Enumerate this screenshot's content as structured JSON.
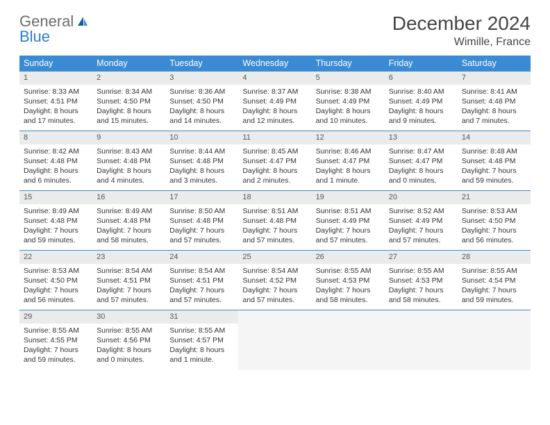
{
  "logo": {
    "general": "General",
    "blue": "Blue"
  },
  "title": "December 2024",
  "location": "Wimille, France",
  "colors": {
    "header_bg": "#3b8bd4",
    "header_text": "#ffffff",
    "daynum_bg": "#e9eceb",
    "border": "#3b8bd4",
    "text": "#333333",
    "logo_gray": "#6d6d6d",
    "logo_blue": "#2b7dcc",
    "empty_bg": "#f4f5f4"
  },
  "typography": {
    "title_fontsize": 28,
    "location_fontsize": 16,
    "dow_fontsize": 12.5,
    "cell_fontsize": 10.5
  },
  "days_of_week": [
    "Sunday",
    "Monday",
    "Tuesday",
    "Wednesday",
    "Thursday",
    "Friday",
    "Saturday"
  ],
  "weeks": [
    [
      {
        "n": "1",
        "sunrise": "Sunrise: 8:33 AM",
        "sunset": "Sunset: 4:51 PM",
        "daylight": "Daylight: 8 hours and 17 minutes."
      },
      {
        "n": "2",
        "sunrise": "Sunrise: 8:34 AM",
        "sunset": "Sunset: 4:50 PM",
        "daylight": "Daylight: 8 hours and 15 minutes."
      },
      {
        "n": "3",
        "sunrise": "Sunrise: 8:36 AM",
        "sunset": "Sunset: 4:50 PM",
        "daylight": "Daylight: 8 hours and 14 minutes."
      },
      {
        "n": "4",
        "sunrise": "Sunrise: 8:37 AM",
        "sunset": "Sunset: 4:49 PM",
        "daylight": "Daylight: 8 hours and 12 minutes."
      },
      {
        "n": "5",
        "sunrise": "Sunrise: 8:38 AM",
        "sunset": "Sunset: 4:49 PM",
        "daylight": "Daylight: 8 hours and 10 minutes."
      },
      {
        "n": "6",
        "sunrise": "Sunrise: 8:40 AM",
        "sunset": "Sunset: 4:49 PM",
        "daylight": "Daylight: 8 hours and 9 minutes."
      },
      {
        "n": "7",
        "sunrise": "Sunrise: 8:41 AM",
        "sunset": "Sunset: 4:48 PM",
        "daylight": "Daylight: 8 hours and 7 minutes."
      }
    ],
    [
      {
        "n": "8",
        "sunrise": "Sunrise: 8:42 AM",
        "sunset": "Sunset: 4:48 PM",
        "daylight": "Daylight: 8 hours and 6 minutes."
      },
      {
        "n": "9",
        "sunrise": "Sunrise: 8:43 AM",
        "sunset": "Sunset: 4:48 PM",
        "daylight": "Daylight: 8 hours and 4 minutes."
      },
      {
        "n": "10",
        "sunrise": "Sunrise: 8:44 AM",
        "sunset": "Sunset: 4:48 PM",
        "daylight": "Daylight: 8 hours and 3 minutes."
      },
      {
        "n": "11",
        "sunrise": "Sunrise: 8:45 AM",
        "sunset": "Sunset: 4:47 PM",
        "daylight": "Daylight: 8 hours and 2 minutes."
      },
      {
        "n": "12",
        "sunrise": "Sunrise: 8:46 AM",
        "sunset": "Sunset: 4:47 PM",
        "daylight": "Daylight: 8 hours and 1 minute."
      },
      {
        "n": "13",
        "sunrise": "Sunrise: 8:47 AM",
        "sunset": "Sunset: 4:47 PM",
        "daylight": "Daylight: 8 hours and 0 minutes."
      },
      {
        "n": "14",
        "sunrise": "Sunrise: 8:48 AM",
        "sunset": "Sunset: 4:48 PM",
        "daylight": "Daylight: 7 hours and 59 minutes."
      }
    ],
    [
      {
        "n": "15",
        "sunrise": "Sunrise: 8:49 AM",
        "sunset": "Sunset: 4:48 PM",
        "daylight": "Daylight: 7 hours and 59 minutes."
      },
      {
        "n": "16",
        "sunrise": "Sunrise: 8:49 AM",
        "sunset": "Sunset: 4:48 PM",
        "daylight": "Daylight: 7 hours and 58 minutes."
      },
      {
        "n": "17",
        "sunrise": "Sunrise: 8:50 AM",
        "sunset": "Sunset: 4:48 PM",
        "daylight": "Daylight: 7 hours and 57 minutes."
      },
      {
        "n": "18",
        "sunrise": "Sunrise: 8:51 AM",
        "sunset": "Sunset: 4:48 PM",
        "daylight": "Daylight: 7 hours and 57 minutes."
      },
      {
        "n": "19",
        "sunrise": "Sunrise: 8:51 AM",
        "sunset": "Sunset: 4:49 PM",
        "daylight": "Daylight: 7 hours and 57 minutes."
      },
      {
        "n": "20",
        "sunrise": "Sunrise: 8:52 AM",
        "sunset": "Sunset: 4:49 PM",
        "daylight": "Daylight: 7 hours and 57 minutes."
      },
      {
        "n": "21",
        "sunrise": "Sunrise: 8:53 AM",
        "sunset": "Sunset: 4:50 PM",
        "daylight": "Daylight: 7 hours and 56 minutes."
      }
    ],
    [
      {
        "n": "22",
        "sunrise": "Sunrise: 8:53 AM",
        "sunset": "Sunset: 4:50 PM",
        "daylight": "Daylight: 7 hours and 56 minutes."
      },
      {
        "n": "23",
        "sunrise": "Sunrise: 8:54 AM",
        "sunset": "Sunset: 4:51 PM",
        "daylight": "Daylight: 7 hours and 57 minutes."
      },
      {
        "n": "24",
        "sunrise": "Sunrise: 8:54 AM",
        "sunset": "Sunset: 4:51 PM",
        "daylight": "Daylight: 7 hours and 57 minutes."
      },
      {
        "n": "25",
        "sunrise": "Sunrise: 8:54 AM",
        "sunset": "Sunset: 4:52 PM",
        "daylight": "Daylight: 7 hours and 57 minutes."
      },
      {
        "n": "26",
        "sunrise": "Sunrise: 8:55 AM",
        "sunset": "Sunset: 4:53 PM",
        "daylight": "Daylight: 7 hours and 58 minutes."
      },
      {
        "n": "27",
        "sunrise": "Sunrise: 8:55 AM",
        "sunset": "Sunset: 4:53 PM",
        "daylight": "Daylight: 7 hours and 58 minutes."
      },
      {
        "n": "28",
        "sunrise": "Sunrise: 8:55 AM",
        "sunset": "Sunset: 4:54 PM",
        "daylight": "Daylight: 7 hours and 59 minutes."
      }
    ],
    [
      {
        "n": "29",
        "sunrise": "Sunrise: 8:55 AM",
        "sunset": "Sunset: 4:55 PM",
        "daylight": "Daylight: 7 hours and 59 minutes."
      },
      {
        "n": "30",
        "sunrise": "Sunrise: 8:55 AM",
        "sunset": "Sunset: 4:56 PM",
        "daylight": "Daylight: 8 hours and 0 minutes."
      },
      {
        "n": "31",
        "sunrise": "Sunrise: 8:55 AM",
        "sunset": "Sunset: 4:57 PM",
        "daylight": "Daylight: 8 hours and 1 minute."
      },
      null,
      null,
      null,
      null
    ]
  ]
}
